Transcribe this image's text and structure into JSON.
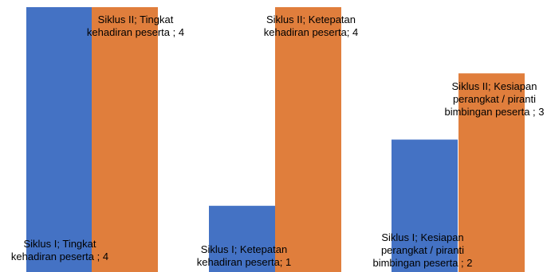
{
  "colors": {
    "series_1": "#4472C4",
    "series_2": "#E07E3C",
    "background": "#FFFFFF",
    "label_text": "#000000"
  },
  "chart_data": {
    "type": "bar",
    "categories": [
      "Tingkat kehadiran peserta",
      "Ketepatan kehadiran peserta",
      "Kesiapan perangkat / piranti bimbingan peserta"
    ],
    "series": [
      {
        "name": "Siklus I",
        "values": [
          4,
          1,
          2
        ],
        "data_labels": [
          [
            "Siklus I; Tingkat",
            "kehadiran peserta ; 4"
          ],
          [
            "Siklus I; Ketepatan",
            "kehadiran peserta; 1"
          ],
          [
            "Siklus I; Kesiapan",
            "perangkat / piranti",
            "bimbingan peserta ; 2"
          ]
        ]
      },
      {
        "name": "Siklus II",
        "values": [
          4,
          4,
          3
        ],
        "data_labels": [
          [
            "Siklus II; Tingkat",
            "kehadiran peserta ; 4"
          ],
          [
            "Siklus II; Ketepatan",
            "kehadiran peserta; 4"
          ],
          [
            "Siklus II; Kesiapan",
            "perangkat / piranti",
            "bimbingan peserta ; 3"
          ]
        ]
      }
    ],
    "ylim": [
      0,
      4
    ],
    "grid": false,
    "legend": "none"
  }
}
